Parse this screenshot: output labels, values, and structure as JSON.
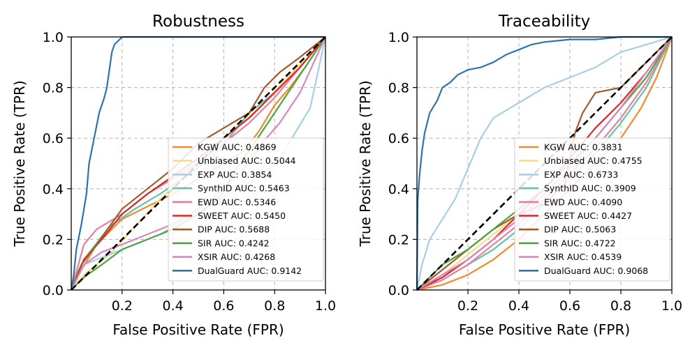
{
  "chart_data": [
    {
      "type": "line",
      "title": "Robustness",
      "xlabel": "False Positive Rate (FPR)",
      "ylabel": "True Positive Rate (TPR)",
      "xlim": [
        0,
        1
      ],
      "ylim": [
        0,
        1
      ],
      "xticks": [
        "0.2",
        "0.4",
        "0.6",
        "0.8",
        "1.0"
      ],
      "yticks": [
        "0.0",
        "0.2",
        "0.4",
        "0.6",
        "0.8",
        "1.0"
      ],
      "grid": true,
      "legend_position": "lower-right",
      "diagonal_reference": true,
      "series": [
        {
          "name": "KGW",
          "auc": "0.4869",
          "label": "KGW AUC: 0.4869",
          "color": "#f08a2b",
          "x": [
            0,
            0.04,
            0.1,
            0.2,
            0.3,
            0.4,
            0.5,
            0.6,
            0.68,
            0.74,
            0.8,
            0.86,
            0.92,
            1.0
          ],
          "y": [
            0,
            0.08,
            0.18,
            0.28,
            0.33,
            0.38,
            0.44,
            0.5,
            0.55,
            0.63,
            0.73,
            0.8,
            0.88,
            1.0
          ]
        },
        {
          "name": "Unbiased",
          "auc": "0.5044",
          "label": "Unbiased AUC: 0.5044",
          "color": "#f5de82",
          "x": [
            0,
            0.05,
            0.15,
            0.25,
            0.35,
            0.45,
            0.55,
            0.65,
            0.75,
            0.85,
            0.93,
            1.0
          ],
          "y": [
            0,
            0.06,
            0.14,
            0.25,
            0.36,
            0.45,
            0.55,
            0.64,
            0.73,
            0.84,
            0.92,
            1.0
          ]
        },
        {
          "name": "EXP",
          "auc": "0.3854",
          "label": "EXP AUC: 0.3854",
          "color": "#a6cfe6",
          "x": [
            0,
            0.05,
            0.15,
            0.25,
            0.35,
            0.45,
            0.55,
            0.65,
            0.75,
            0.82,
            0.88,
            0.94,
            1.0
          ],
          "y": [
            0,
            0.1,
            0.14,
            0.18,
            0.22,
            0.28,
            0.34,
            0.4,
            0.45,
            0.52,
            0.62,
            0.72,
            1.0
          ]
        },
        {
          "name": "SynthID",
          "auc": "0.5463",
          "label": "SynthID AUC: 0.5463",
          "color": "#66c2a4",
          "x": [
            0,
            0.02,
            0.05,
            0.15,
            0.25,
            0.35,
            0.45,
            0.55,
            0.62,
            0.7,
            0.8,
            0.9,
            1.0
          ],
          "y": [
            0,
            0.06,
            0.12,
            0.25,
            0.32,
            0.38,
            0.45,
            0.52,
            0.6,
            0.7,
            0.78,
            0.88,
            1.0
          ]
        },
        {
          "name": "EWD",
          "auc": "0.5346",
          "label": "EWD AUC: 0.5346",
          "color": "#e57fa0",
          "x": [
            0,
            0.05,
            0.1,
            0.2,
            0.3,
            0.4,
            0.5,
            0.6,
            0.7,
            0.8,
            0.9,
            1.0
          ],
          "y": [
            0,
            0.18,
            0.24,
            0.3,
            0.38,
            0.44,
            0.5,
            0.58,
            0.66,
            0.76,
            0.88,
            1.0
          ]
        },
        {
          "name": "SWEET",
          "auc": "0.5450",
          "label": "SWEET AUC: 0.5450",
          "color": "#d62a28",
          "x": [
            0,
            0.05,
            0.12,
            0.2,
            0.3,
            0.4,
            0.5,
            0.6,
            0.7,
            0.8,
            0.9,
            1.0
          ],
          "y": [
            0,
            0.12,
            0.2,
            0.3,
            0.38,
            0.45,
            0.52,
            0.6,
            0.68,
            0.78,
            0.88,
            1.0
          ]
        },
        {
          "name": "DIP",
          "auc": "0.5688",
          "label": "DIP AUC: 0.5688",
          "color": "#a25a2a",
          "x": [
            0,
            0.04,
            0.1,
            0.2,
            0.3,
            0.4,
            0.5,
            0.6,
            0.7,
            0.76,
            0.82,
            0.9,
            1.0
          ],
          "y": [
            0,
            0.1,
            0.18,
            0.32,
            0.4,
            0.48,
            0.58,
            0.64,
            0.7,
            0.8,
            0.86,
            0.92,
            1.0
          ]
        },
        {
          "name": "SIR",
          "auc": "0.4242",
          "label": "SIR AUC: 0.4242",
          "color": "#4aa63a",
          "x": [
            0,
            0.05,
            0.12,
            0.2,
            0.3,
            0.4,
            0.5,
            0.58,
            0.65,
            0.72,
            0.8,
            0.88,
            1.0
          ],
          "y": [
            0,
            0.05,
            0.1,
            0.16,
            0.2,
            0.24,
            0.3,
            0.36,
            0.48,
            0.58,
            0.7,
            0.82,
            1.0
          ]
        },
        {
          "name": "XSIR",
          "auc": "0.4268",
          "label": "XSIR AUC: 0.4268",
          "color": "#d986c0",
          "x": [
            0,
            0.05,
            0.12,
            0.2,
            0.3,
            0.4,
            0.5,
            0.6,
            0.7,
            0.75,
            0.82,
            0.9,
            1.0
          ],
          "y": [
            0,
            0.1,
            0.15,
            0.18,
            0.22,
            0.26,
            0.32,
            0.4,
            0.5,
            0.58,
            0.66,
            0.78,
            1.0
          ]
        },
        {
          "name": "DualGuard",
          "auc": "0.9142",
          "label": "DualGuard AUC: 0.9142",
          "color": "#2f73ab",
          "x": [
            0,
            0.01,
            0.02,
            0.04,
            0.06,
            0.07,
            0.09,
            0.11,
            0.13,
            0.14,
            0.15,
            0.16,
            0.17,
            0.19,
            0.2,
            0.25,
            0.3,
            1.0
          ],
          "y": [
            0,
            0.06,
            0.16,
            0.26,
            0.38,
            0.5,
            0.6,
            0.7,
            0.76,
            0.8,
            0.87,
            0.94,
            0.97,
            0.99,
            1.0,
            1.0,
            1.0,
            1.0
          ]
        }
      ]
    },
    {
      "type": "line",
      "title": "Traceability",
      "xlabel": "False Positive Rate (FPR)",
      "ylabel": "True Positive Rate (TPR)",
      "xlim": [
        0,
        1
      ],
      "ylim": [
        0,
        1
      ],
      "xticks": [
        "0.2",
        "0.4",
        "0.6",
        "0.8",
        "1.0"
      ],
      "yticks": [
        "0.0",
        "0.2",
        "0.4",
        "0.6",
        "0.8",
        "1.0"
      ],
      "grid": true,
      "legend_position": "lower-right",
      "diagonal_reference": true,
      "series": [
        {
          "name": "KGW",
          "auc": "0.3831",
          "label": "KGW AUC: 0.3831",
          "color": "#f08a2b",
          "x": [
            0,
            0.1,
            0.2,
            0.3,
            0.4,
            0.5,
            0.6,
            0.7,
            0.8,
            0.88,
            0.94,
            1.0
          ],
          "y": [
            0,
            0.02,
            0.06,
            0.12,
            0.2,
            0.3,
            0.4,
            0.5,
            0.6,
            0.72,
            0.84,
            1.0
          ]
        },
        {
          "name": "Unbiased",
          "auc": "0.4755",
          "label": "Unbiased AUC: 0.4755",
          "color": "#f5de82",
          "x": [
            0,
            0.1,
            0.2,
            0.3,
            0.4,
            0.5,
            0.6,
            0.7,
            0.8,
            0.9,
            1.0
          ],
          "y": [
            0,
            0.06,
            0.14,
            0.22,
            0.3,
            0.4,
            0.5,
            0.6,
            0.72,
            0.84,
            1.0
          ]
        },
        {
          "name": "EXP",
          "auc": "0.6733",
          "label": "EXP AUC: 0.6733",
          "color": "#a6cfe6",
          "x": [
            0,
            0.02,
            0.05,
            0.1,
            0.15,
            0.2,
            0.25,
            0.3,
            0.4,
            0.5,
            0.6,
            0.7,
            0.8,
            0.9,
            1.0
          ],
          "y": [
            0,
            0.1,
            0.2,
            0.28,
            0.36,
            0.48,
            0.6,
            0.68,
            0.74,
            0.8,
            0.84,
            0.88,
            0.94,
            0.97,
            1.0
          ]
        },
        {
          "name": "SynthID",
          "auc": "0.3909",
          "label": "SynthID AUC: 0.3909",
          "color": "#66c2a4",
          "x": [
            0,
            0.1,
            0.2,
            0.3,
            0.4,
            0.5,
            0.6,
            0.7,
            0.8,
            0.9,
            1.0
          ],
          "y": [
            0,
            0.04,
            0.1,
            0.16,
            0.24,
            0.34,
            0.44,
            0.54,
            0.66,
            0.8,
            1.0
          ]
        },
        {
          "name": "EWD",
          "auc": "0.4090",
          "label": "EWD AUC: 0.4090",
          "color": "#e57fa0",
          "x": [
            0,
            0.1,
            0.2,
            0.3,
            0.4,
            0.5,
            0.6,
            0.7,
            0.8,
            0.9,
            1.0
          ],
          "y": [
            0,
            0.04,
            0.1,
            0.18,
            0.26,
            0.36,
            0.46,
            0.56,
            0.68,
            0.82,
            1.0
          ]
        },
        {
          "name": "SWEET",
          "auc": "0.4427",
          "label": "SWEET AUC: 0.4427",
          "color": "#d62a28",
          "x": [
            0,
            0.1,
            0.2,
            0.3,
            0.4,
            0.5,
            0.6,
            0.7,
            0.8,
            0.9,
            1.0
          ],
          "y": [
            0,
            0.05,
            0.12,
            0.2,
            0.3,
            0.4,
            0.52,
            0.64,
            0.74,
            0.86,
            1.0
          ]
        },
        {
          "name": "DIP",
          "auc": "0.5063",
          "label": "DIP AUC: 0.5063",
          "color": "#a25a2a",
          "x": [
            0,
            0.1,
            0.2,
            0.3,
            0.4,
            0.5,
            0.58,
            0.6,
            0.62,
            0.65,
            0.7,
            0.8,
            0.9,
            1.0
          ],
          "y": [
            0,
            0.08,
            0.16,
            0.24,
            0.3,
            0.34,
            0.42,
            0.52,
            0.62,
            0.7,
            0.78,
            0.8,
            0.9,
            1.0
          ]
        },
        {
          "name": "SIR",
          "auc": "0.4722",
          "label": "SIR AUC: 0.4722",
          "color": "#4aa63a",
          "x": [
            0,
            0.1,
            0.2,
            0.3,
            0.4,
            0.5,
            0.6,
            0.7,
            0.8,
            0.9,
            1.0
          ],
          "y": [
            0,
            0.1,
            0.16,
            0.24,
            0.32,
            0.4,
            0.5,
            0.6,
            0.72,
            0.84,
            1.0
          ]
        },
        {
          "name": "XSIR",
          "auc": "0.4539",
          "label": "XSIR AUC: 0.4539",
          "color": "#d986c0",
          "x": [
            0,
            0.1,
            0.2,
            0.3,
            0.4,
            0.5,
            0.6,
            0.7,
            0.8,
            0.9,
            1.0
          ],
          "y": [
            0,
            0.06,
            0.12,
            0.2,
            0.28,
            0.38,
            0.48,
            0.6,
            0.72,
            0.86,
            1.0
          ]
        },
        {
          "name": "DualGuard",
          "auc": "0.9068",
          "label": "DualGuard AUC: 0.9068",
          "color": "#2f73ab",
          "x": [
            0,
            0.003,
            0.01,
            0.02,
            0.03,
            0.05,
            0.08,
            0.1,
            0.13,
            0.16,
            0.2,
            0.25,
            0.3,
            0.35,
            0.4,
            0.45,
            0.5,
            0.6,
            0.7,
            0.8,
            0.9,
            1.0
          ],
          "y": [
            0,
            0.35,
            0.45,
            0.55,
            0.62,
            0.7,
            0.75,
            0.8,
            0.82,
            0.85,
            0.87,
            0.88,
            0.9,
            0.93,
            0.95,
            0.97,
            0.98,
            0.99,
            0.99,
            1.0,
            1.0,
            1.0
          ]
        }
      ]
    }
  ]
}
